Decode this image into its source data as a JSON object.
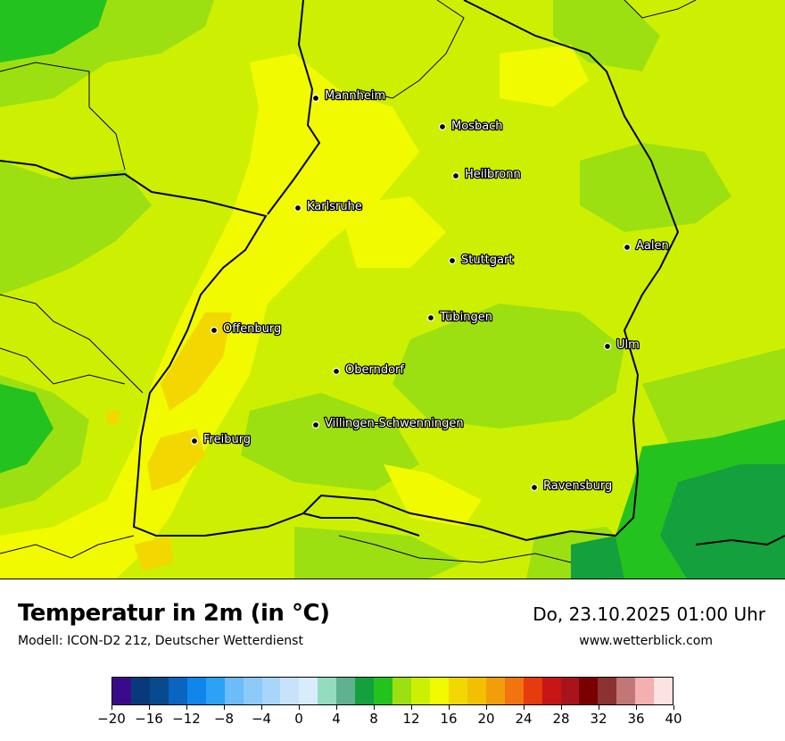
{
  "title": "Temperatur in 2m (in °C)",
  "model": "Modell: ICON-D2 21z, Deutscher Wetterdienst",
  "datetime": "Do, 23.10.2025 01:00 Uhr",
  "website": "www.wetterblick.com",
  "cities": [
    {
      "name": "Mannheim"
    },
    {
      "name": "Mosbach"
    },
    {
      "name": "Heilbronn"
    },
    {
      "name": "Karlsruhe"
    },
    {
      "name": "Aalen"
    },
    {
      "name": "Stuttgart"
    },
    {
      "name": "Tübingen"
    },
    {
      "name": "Offenburg"
    },
    {
      "name": "Ulm"
    },
    {
      "name": "Oberndorf"
    },
    {
      "name": "Villingen-Schwenningen"
    },
    {
      "name": "Freiburg"
    },
    {
      "name": "Ravensburg"
    }
  ],
  "legend": {
    "unit": "°C",
    "min": -20,
    "max": 40,
    "tick_labels": [
      "−20",
      "−16",
      "−12",
      "−8",
      "−4",
      "0",
      "4",
      "8",
      "12",
      "16",
      "20",
      "24",
      "28",
      "32",
      "36",
      "40"
    ],
    "colors": [
      "#3b0a8a",
      "#08397a",
      "#074a8e",
      "#0a64c2",
      "#0f86ea",
      "#2ba2f5",
      "#6bbcf8",
      "#8ccaf9",
      "#a9d5fb",
      "#c8e2fc",
      "#d9ecfd",
      "#94dbc0",
      "#5fb18f",
      "#14a03c",
      "#24c21e",
      "#9de011",
      "#cdf002",
      "#f2fa00",
      "#f2d800",
      "#f2c000",
      "#f29e0c",
      "#f2740e",
      "#e63a0f",
      "#c61616",
      "#a8141b",
      "#7a0000",
      "#8c3232",
      "#c27676",
      "#f4b0b0",
      "#fde2e2"
    ]
  }
}
